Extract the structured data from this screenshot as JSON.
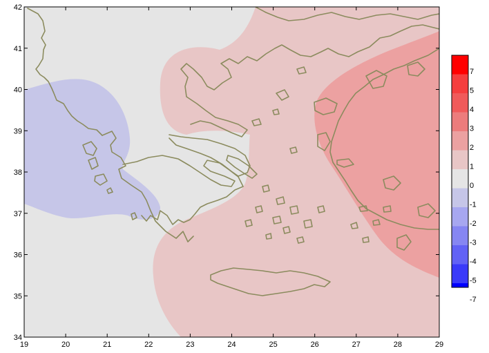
{
  "map": {
    "x_ticks": [
      "19",
      "20",
      "21",
      "22",
      "23",
      "24",
      "25",
      "26",
      "27",
      "28",
      "29"
    ],
    "y_ticks": [
      "42",
      "41",
      "40",
      "39",
      "38",
      "37",
      "36",
      "35",
      "34"
    ],
    "x_range": [
      19,
      29
    ],
    "y_range": [
      34,
      42
    ]
  },
  "colorbar": {
    "labels": [
      "7",
      "5",
      "4",
      "3",
      "2",
      "1",
      "0",
      "-1",
      "-2",
      "-3",
      "-4",
      "-5",
      "-7"
    ],
    "colors": [
      "#ff0000",
      "#f53e3e",
      "#f05a5a",
      "#ec7c7c",
      "#eba1a1",
      "#e8c6c6",
      "#e5e5e5",
      "#c6c6e8",
      "#a7a7f0",
      "#8686f2",
      "#6262f5",
      "#3a3af9",
      "#0000ff"
    ]
  },
  "fill_colors": {
    "background": "#e5e5e5",
    "blue_region": "#c6c6e8",
    "pink_region": "#e8c6c6",
    "red_region": "#eca1a1",
    "coastline": "#8b8b5e"
  }
}
